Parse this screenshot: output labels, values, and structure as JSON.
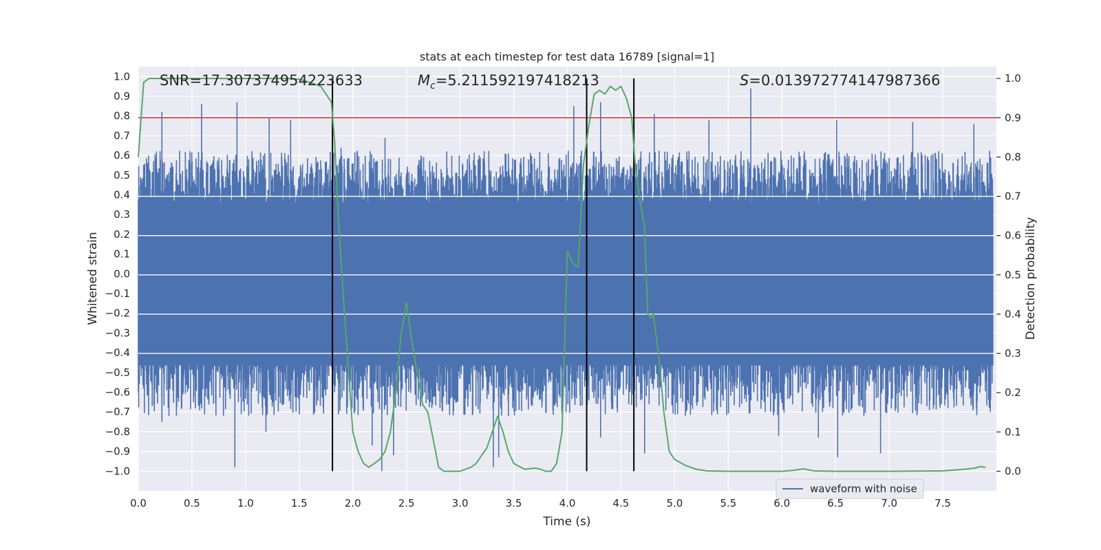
{
  "chart_data": {
    "type": "line",
    "title": "stats at each timestep for test data 16789 [signal=1]",
    "xlabel": "Time (s)",
    "ylabel": "Whitened strain",
    "y2label": "Detection probability",
    "xlim": [
      0.0,
      8.0
    ],
    "ylim": [
      -1.1,
      1.05
    ],
    "y2lim": [
      -0.05,
      1.03
    ],
    "xticks": [
      "0.0",
      "0.5",
      "1.0",
      "1.5",
      "2.0",
      "2.5",
      "3.0",
      "3.5",
      "4.0",
      "4.5",
      "5.0",
      "5.5",
      "6.0",
      "6.5",
      "7.0",
      "7.5"
    ],
    "yticks": [
      "1.0",
      "0.9",
      "0.8",
      "0.7",
      "0.6",
      "0.5",
      "0.4",
      "0.3",
      "0.2",
      "0.1",
      "0.0",
      "-0.1",
      "-0.2",
      "-0.3",
      "-0.4",
      "-0.5",
      "-0.6",
      "-0.7",
      "-0.8",
      "-0.9",
      "-1.0"
    ],
    "y2ticks": [
      "1.0",
      "0.9",
      "0.8",
      "0.7",
      "0.6",
      "0.5",
      "0.4",
      "0.3",
      "0.2",
      "0.1",
      "0.0"
    ],
    "annotations": {
      "snr": "SNR=17.307374954223633",
      "mc_symbol": "M",
      "mc_sub": "c",
      "mc_value": "=5.211592197418213",
      "s_symbol": "S",
      "s_value": "=0.013972774147987366"
    },
    "threshold": {
      "value": 0.9,
      "axis": "right",
      "color": "#c44e52"
    },
    "vlines": [
      1.81,
      4.18,
      4.62
    ],
    "vline_color": "#000000",
    "legend": {
      "label": "waveform with noise",
      "placement": "lower-right"
    },
    "series": [
      {
        "name": "waveform with noise",
        "axis": "left",
        "color": "#4c72b0",
        "kind": "noise",
        "core_amplitude": 0.36,
        "typical_peak_max": 0.6,
        "notable_peaks": [
          [
            0.22,
            0.82
          ],
          [
            0.59,
            0.86
          ],
          [
            0.92,
            0.87
          ],
          [
            1.22,
            0.79
          ],
          [
            1.42,
            0.78
          ],
          [
            1.89,
            0.64
          ],
          [
            2.3,
            0.69
          ],
          [
            4.06,
            0.85
          ],
          [
            4.31,
            0.87
          ],
          [
            4.81,
            0.81
          ],
          [
            5.32,
            0.78
          ],
          [
            5.71,
            0.94
          ],
          [
            6.51,
            0.78
          ],
          [
            7.22,
            0.77
          ],
          [
            7.79,
            0.76
          ]
        ],
        "notable_troughs": [
          [
            0.9,
            -0.98
          ],
          [
            0.22,
            -0.75
          ],
          [
            1.19,
            -0.8
          ],
          [
            2.18,
            -0.87
          ],
          [
            2.27,
            -1.0
          ],
          [
            2.38,
            -0.92
          ],
          [
            3.31,
            -0.98
          ],
          [
            3.36,
            -0.93
          ],
          [
            4.31,
            -0.83
          ],
          [
            4.72,
            -0.91
          ],
          [
            6.34,
            -0.83
          ],
          [
            6.52,
            -0.93
          ],
          [
            6.92,
            -0.91
          ],
          [
            5.97,
            -0.82
          ]
        ]
      },
      {
        "name": "detection probability",
        "axis": "right",
        "color": "#55a868",
        "x": [
          0.0,
          0.05,
          0.1,
          0.15,
          0.2,
          0.4,
          0.6,
          0.8,
          1.0,
          1.2,
          1.4,
          1.5,
          1.6,
          1.7,
          1.75,
          1.8,
          1.83,
          1.87,
          1.92,
          2.0,
          2.05,
          2.1,
          2.15,
          2.2,
          2.25,
          2.3,
          2.35,
          2.4,
          2.45,
          2.5,
          2.55,
          2.6,
          2.65,
          2.7,
          2.75,
          2.8,
          2.85,
          2.9,
          2.95,
          3.0,
          3.05,
          3.1,
          3.15,
          3.2,
          3.25,
          3.3,
          3.35,
          3.4,
          3.45,
          3.5,
          3.6,
          3.7,
          3.75,
          3.8,
          3.85,
          3.9,
          3.95,
          4.0,
          4.05,
          4.1,
          4.15,
          4.2,
          4.25,
          4.3,
          4.35,
          4.4,
          4.45,
          4.5,
          4.55,
          4.6,
          4.63,
          4.67,
          4.72,
          4.75,
          4.78,
          4.8,
          4.85,
          4.9,
          4.95,
          5.0,
          5.1,
          5.2,
          5.3,
          5.5,
          5.7,
          6.0,
          6.1,
          6.2,
          6.3,
          6.5,
          7.0,
          7.5,
          7.7,
          7.8,
          7.85,
          7.9
        ],
        "values": [
          0.8,
          0.99,
          1.0,
          1.0,
          1.0,
          1.0,
          1.0,
          1.0,
          1.0,
          1.0,
          1.0,
          0.998,
          0.99,
          0.98,
          0.96,
          0.94,
          0.84,
          0.62,
          0.41,
          0.1,
          0.05,
          0.02,
          0.01,
          0.02,
          0.03,
          0.05,
          0.1,
          0.2,
          0.35,
          0.43,
          0.33,
          0.25,
          0.17,
          0.15,
          0.08,
          0.01,
          0.0,
          0.0,
          0.0,
          0.0,
          0.005,
          0.01,
          0.02,
          0.04,
          0.06,
          0.1,
          0.14,
          0.1,
          0.05,
          0.02,
          0.005,
          0.008,
          0.005,
          0.0,
          0.0,
          0.02,
          0.1,
          0.56,
          0.53,
          0.52,
          0.78,
          0.88,
          0.96,
          0.97,
          0.96,
          0.98,
          0.97,
          0.98,
          0.95,
          0.9,
          0.79,
          0.7,
          0.62,
          0.4,
          0.39,
          0.4,
          0.3,
          0.15,
          0.05,
          0.03,
          0.015,
          0.005,
          0.001,
          0.0,
          0.0,
          0.0,
          0.002,
          0.006,
          0.001,
          0.0,
          0.0,
          0.001,
          0.005,
          0.008,
          0.012,
          0.01
        ]
      }
    ]
  }
}
